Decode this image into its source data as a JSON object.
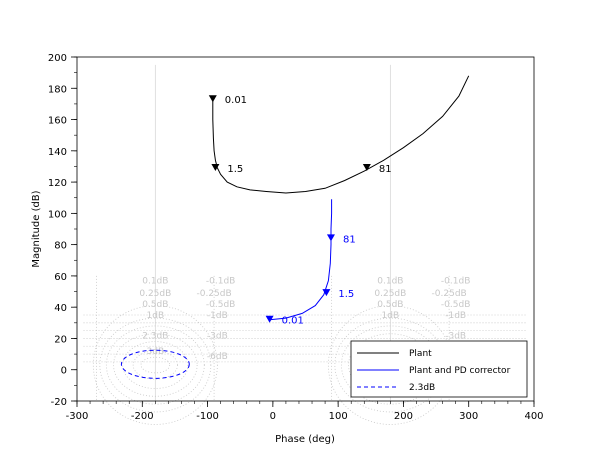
{
  "chart_data": {
    "type": "line",
    "title": "",
    "xlabel": "Phase (deg)",
    "ylabel": "Magnitude (dB)",
    "xlim": [
      -300,
      400
    ],
    "ylim": [
      -20,
      200
    ],
    "xticks": [
      "-300",
      "-200",
      "-100",
      "0",
      "100",
      "200",
      "300",
      "400"
    ],
    "yticks": [
      "-20",
      "0",
      "20",
      "40",
      "60",
      "80",
      "100",
      "120",
      "140",
      "160",
      "180",
      "200"
    ],
    "grid": "nichols chart (dotted iso-gain contours)",
    "nichols_labels": [
      {
        "text": "0.1dB",
        "x": -180,
        "y": 55
      },
      {
        "text": "-0.1dB",
        "x": -80,
        "y": 55
      },
      {
        "text": "0.1dB",
        "x": 180,
        "y": 55
      },
      {
        "text": "-0.1dB",
        "x": 280,
        "y": 55
      },
      {
        "text": "0.25dB",
        "x": -180,
        "y": 47
      },
      {
        "text": "-0.25dB",
        "x": -90,
        "y": 47
      },
      {
        "text": "0.25dB",
        "x": 180,
        "y": 47
      },
      {
        "text": "-0.25dB",
        "x": 270,
        "y": 47
      },
      {
        "text": "0.5dB",
        "x": -180,
        "y": 40
      },
      {
        "text": "-0.5dB",
        "x": -80,
        "y": 40
      },
      {
        "text": "0.5dB",
        "x": 180,
        "y": 40
      },
      {
        "text": "-0.5dB",
        "x": 280,
        "y": 40
      },
      {
        "text": "1dB",
        "x": -180,
        "y": 33
      },
      {
        "text": "-1dB",
        "x": -85,
        "y": 33
      },
      {
        "text": "1dB",
        "x": 180,
        "y": 33
      },
      {
        "text": "-1dB",
        "x": 280,
        "y": 33
      },
      {
        "text": "2.3dB",
        "x": -180,
        "y": 20
      },
      {
        "text": "-3dB",
        "x": -85,
        "y": 20
      },
      {
        "text": "-3dB",
        "x": 280,
        "y": 20
      },
      {
        "text": "3dB",
        "x": -180,
        "y": 10
      },
      {
        "text": "-6dB",
        "x": -85,
        "y": 7
      }
    ],
    "series": [
      {
        "name": "Plant",
        "color": "#000000",
        "style": "solid",
        "x": [
          -92,
          -92,
          -91,
          -90,
          -88,
          -85,
          -80,
          -70,
          -55,
          -35,
          -10,
          20,
          50,
          80,
          110,
          140,
          170,
          200,
          230,
          260,
          285,
          300
        ],
        "y": [
          173,
          160,
          148,
          140,
          134,
          129,
          125,
          120,
          117,
          115,
          114,
          113,
          114,
          116,
          121,
          127,
          134,
          142,
          151,
          162,
          175,
          188
        ],
        "freq_labels": [
          {
            "text": "0.01",
            "x": -92,
            "y": 173
          },
          {
            "text": "1.5",
            "x": -88,
            "y": 129
          },
          {
            "text": "81",
            "x": 144,
            "y": 129
          }
        ]
      },
      {
        "name": "Plant and PD corrector",
        "color": "#0000ff",
        "style": "solid",
        "x": [
          -5,
          20,
          45,
          65,
          78,
          85,
          88,
          89,
          89,
          90,
          90
        ],
        "y": [
          32,
          33,
          36,
          41,
          48,
          57,
          68,
          80,
          90,
          100,
          109
        ],
        "freq_labels": [
          {
            "text": "0.01",
            "x": -5,
            "y": 32
          },
          {
            "text": "1.5",
            "x": 82,
            "y": 49
          },
          {
            "text": "81",
            "x": 89,
            "y": 84
          }
        ]
      },
      {
        "name": "2.3dB",
        "color": "#0000ff",
        "style": "dashed",
        "ellipse": {
          "cx": -180,
          "cy": 3.5,
          "rx": 52,
          "ry": 9
        }
      }
    ],
    "legend": {
      "placement": "bottom-right",
      "entries": [
        "Plant",
        "Plant and PD corrector",
        "2.3dB"
      ]
    }
  }
}
